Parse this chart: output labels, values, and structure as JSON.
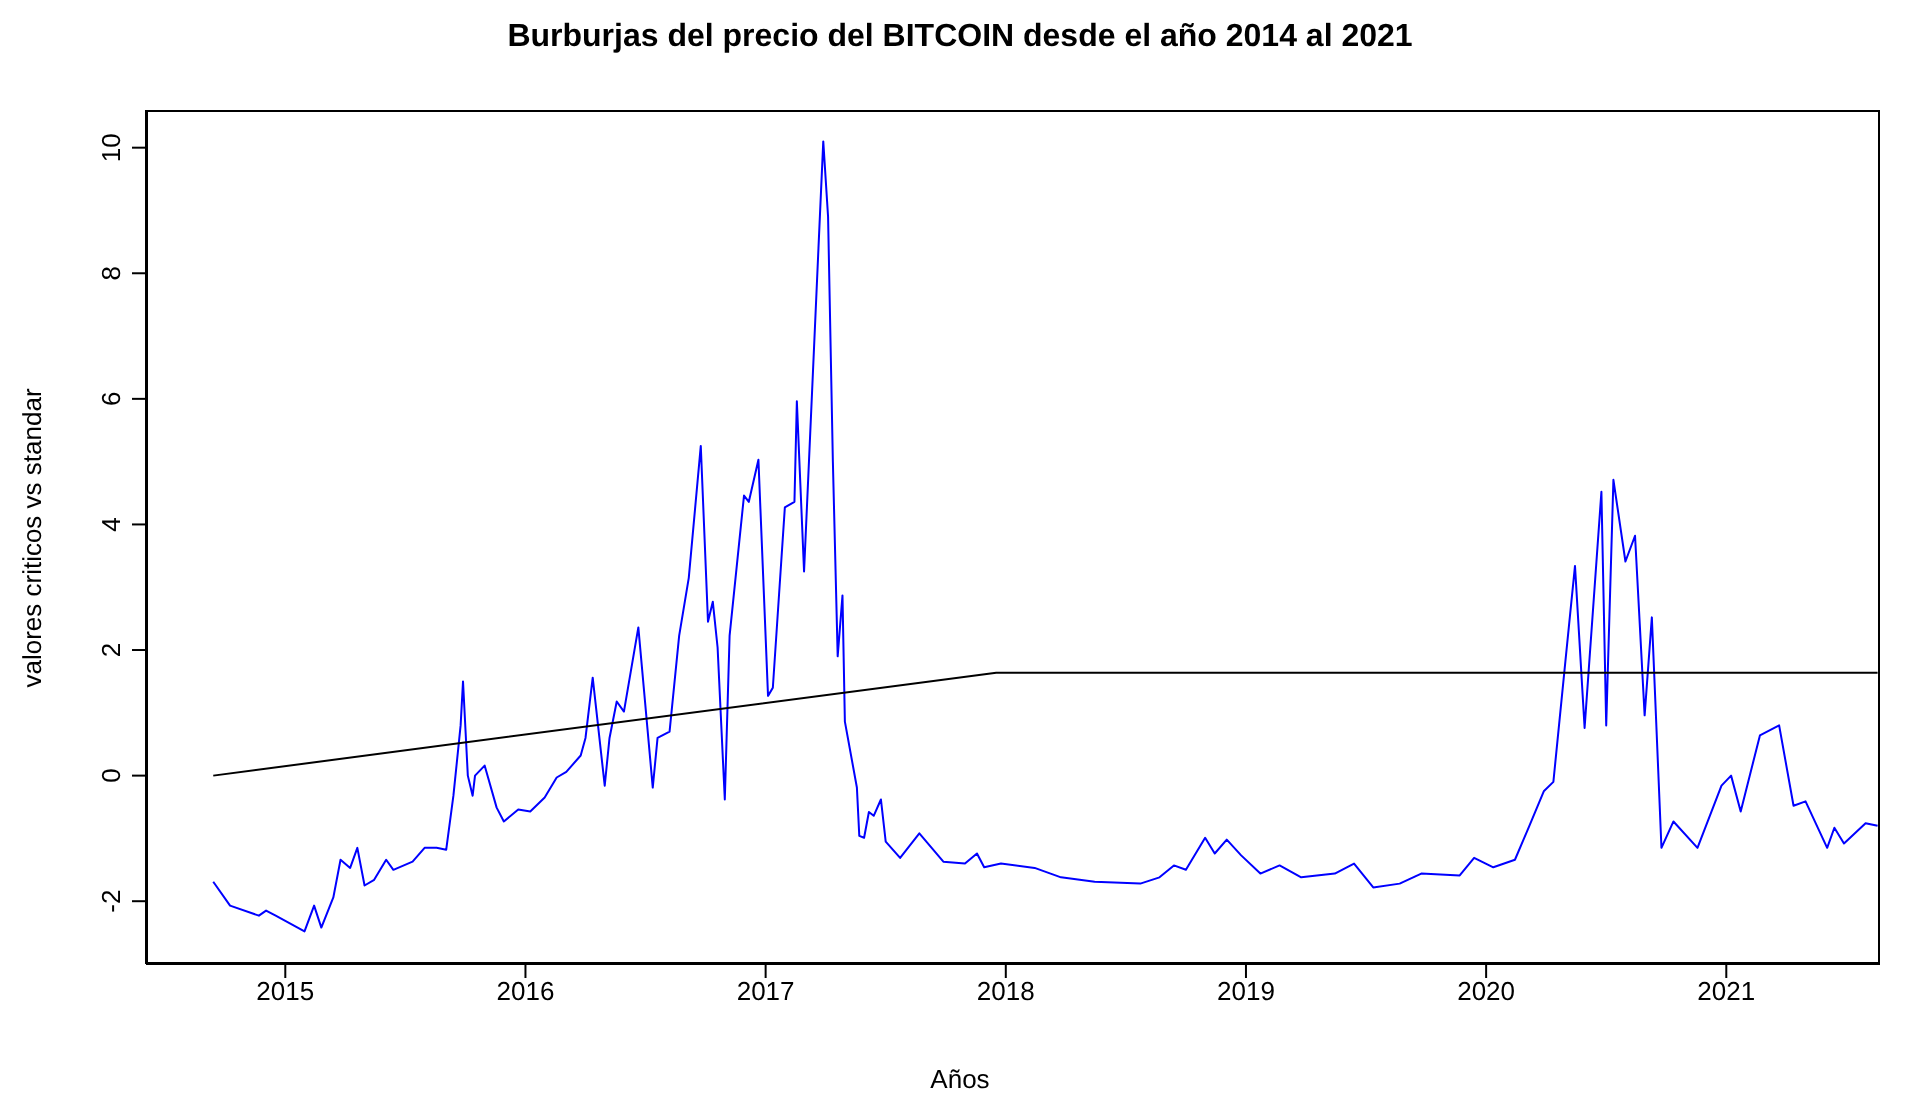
{
  "chart_data": {
    "type": "line",
    "title": "Burburjas del precio del BITCOIN desde el año 2014 al 2021",
    "xlabel": "Años",
    "ylabel": "valores criticos vs standar",
    "xlim": [
      2014.42,
      2021.64
    ],
    "xticks": [
      2015,
      2016,
      2017,
      2018,
      2019,
      2020,
      2021
    ],
    "ylim": [
      -3.0,
      10.6
    ],
    "yticks": [
      -2,
      0,
      2,
      4,
      6,
      8,
      10
    ],
    "grid": false,
    "legend": false,
    "marker": "none",
    "line_style": "solid",
    "series": [
      {
        "color": "#0000ff",
        "x": [
          2014.7,
          2014.77,
          2014.89,
          2014.92,
          2014.96,
          2015.08,
          2015.12,
          2015.15,
          2015.2,
          2015.23,
          2015.27,
          2015.3,
          2015.33,
          2015.37,
          2015.42,
          2015.45,
          2015.53,
          2015.58,
          2015.63,
          2015.67,
          2015.7,
          2015.73,
          2015.74,
          2015.76,
          2015.78,
          2015.79,
          2015.83,
          2015.88,
          2015.91,
          2015.97,
          2016.02,
          2016.08,
          2016.13,
          2016.17,
          2016.23,
          2016.25,
          2016.28,
          2016.33,
          2016.35,
          2016.38,
          2016.41,
          2016.47,
          2016.53,
          2016.55,
          2016.6,
          2016.64,
          2016.68,
          2016.73,
          2016.76,
          2016.78,
          2016.8,
          2016.83,
          2016.85,
          2016.91,
          2016.93,
          2016.97,
          2017.01,
          2017.03,
          2017.08,
          2017.12,
          2017.13,
          2017.16,
          2017.22,
          2017.24,
          2017.26,
          2017.28,
          2017.3,
          2017.32,
          2017.33,
          2017.38,
          2017.39,
          2017.41,
          2017.43,
          2017.45,
          2017.48,
          2017.5,
          2017.56,
          2017.64,
          2017.74,
          2017.83,
          2017.88,
          2017.91,
          2017.98,
          2018.12,
          2018.23,
          2018.37,
          2018.56,
          2018.64,
          2018.7,
          2018.75,
          2018.83,
          2018.87,
          2018.92,
          2018.98,
          2019.06,
          2019.14,
          2019.23,
          2019.37,
          2019.45,
          2019.53,
          2019.64,
          2019.73,
          2019.89,
          2019.95,
          2020.03,
          2020.12,
          2020.18,
          2020.24,
          2020.28,
          2020.33,
          2020.37,
          2020.41,
          2020.48,
          2020.5,
          2020.53,
          2020.58,
          2020.62,
          2020.66,
          2020.69,
          2020.73,
          2020.78,
          2020.88,
          2020.98,
          2021.02,
          2021.06,
          2021.14,
          2021.22,
          2021.28,
          2021.33,
          2021.42,
          2021.45,
          2021.49,
          2021.58,
          2021.63
        ],
        "values": [
          -1.69,
          -2.07,
          -2.23,
          -2.15,
          -2.23,
          -2.48,
          -2.07,
          -2.42,
          -1.94,
          -1.34,
          -1.47,
          -1.15,
          -1.75,
          -1.66,
          -1.34,
          -1.5,
          -1.37,
          -1.15,
          -1.15,
          -1.18,
          -0.32,
          0.8,
          1.5,
          0,
          -0.32,
          0,
          0.16,
          -0.51,
          -0.73,
          -0.54,
          -0.57,
          -0.35,
          -0.03,
          0.06,
          0.32,
          0.6,
          1.56,
          -0.16,
          0.6,
          1.18,
          1.02,
          2.36,
          -0.19,
          0.6,
          0.7,
          2.23,
          3.15,
          5.25,
          2.45,
          2.77,
          2.04,
          -0.38,
          2.23,
          4.46,
          4.36,
          5.03,
          1.27,
          1.4,
          4.27,
          4.36,
          5.96,
          3.25,
          8.4,
          10.1,
          8.9,
          5.0,
          1.9,
          2.87,
          0.86,
          -0.19,
          -0.96,
          -0.99,
          -0.58,
          -0.64,
          -0.38,
          -1.05,
          -1.31,
          -0.92,
          -1.37,
          -1.4,
          -1.24,
          -1.46,
          -1.4,
          -1.47,
          -1.62,
          -1.69,
          -1.72,
          -1.62,
          -1.43,
          -1.5,
          -0.99,
          -1.24,
          -1.02,
          -1.27,
          -1.56,
          -1.43,
          -1.62,
          -1.56,
          -1.4,
          -1.78,
          -1.72,
          -1.56,
          -1.59,
          -1.31,
          -1.46,
          -1.34,
          -0.8,
          -0.25,
          -0.1,
          1.82,
          3.34,
          0.76,
          4.52,
          0.8,
          4.71,
          3.41,
          3.82,
          0.96,
          2.52,
          -1.15,
          -0.73,
          -1.15,
          -0.16,
          0,
          -0.57,
          0.64,
          0.8,
          -0.48,
          -0.41,
          -1.15,
          -0.83,
          -1.08,
          -0.76,
          -0.8
        ]
      },
      {
        "color": "#000000",
        "x": [
          2014.7,
          2017.96,
          2021.63
        ],
        "values": [
          0,
          1.64,
          1.64
        ]
      }
    ]
  }
}
